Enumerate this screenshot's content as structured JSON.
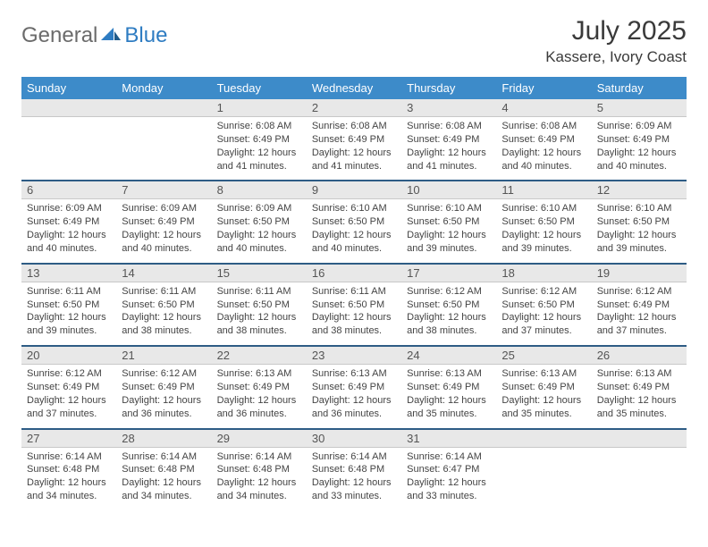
{
  "logo": {
    "text_a": "General",
    "text_b": "Blue"
  },
  "title": {
    "month": "July 2025",
    "location": "Kassere, Ivory Coast"
  },
  "colors": {
    "header_bg": "#3d8bc9",
    "header_text": "#ffffff",
    "date_bg": "#e8e8e8",
    "row_border": "#2e5c85",
    "logo_gray": "#6b6b6b",
    "logo_blue": "#2e7cc2"
  },
  "day_names": [
    "Sunday",
    "Monday",
    "Tuesday",
    "Wednesday",
    "Thursday",
    "Friday",
    "Saturday"
  ],
  "weeks": [
    {
      "dates": [
        "",
        "",
        "1",
        "2",
        "3",
        "4",
        "5"
      ],
      "cells": [
        null,
        null,
        {
          "sunrise": "Sunrise: 6:08 AM",
          "sunset": "Sunset: 6:49 PM",
          "daylight": "Daylight: 12 hours and 41 minutes."
        },
        {
          "sunrise": "Sunrise: 6:08 AM",
          "sunset": "Sunset: 6:49 PM",
          "daylight": "Daylight: 12 hours and 41 minutes."
        },
        {
          "sunrise": "Sunrise: 6:08 AM",
          "sunset": "Sunset: 6:49 PM",
          "daylight": "Daylight: 12 hours and 41 minutes."
        },
        {
          "sunrise": "Sunrise: 6:08 AM",
          "sunset": "Sunset: 6:49 PM",
          "daylight": "Daylight: 12 hours and 40 minutes."
        },
        {
          "sunrise": "Sunrise: 6:09 AM",
          "sunset": "Sunset: 6:49 PM",
          "daylight": "Daylight: 12 hours and 40 minutes."
        }
      ]
    },
    {
      "dates": [
        "6",
        "7",
        "8",
        "9",
        "10",
        "11",
        "12"
      ],
      "cells": [
        {
          "sunrise": "Sunrise: 6:09 AM",
          "sunset": "Sunset: 6:49 PM",
          "daylight": "Daylight: 12 hours and 40 minutes."
        },
        {
          "sunrise": "Sunrise: 6:09 AM",
          "sunset": "Sunset: 6:49 PM",
          "daylight": "Daylight: 12 hours and 40 minutes."
        },
        {
          "sunrise": "Sunrise: 6:09 AM",
          "sunset": "Sunset: 6:50 PM",
          "daylight": "Daylight: 12 hours and 40 minutes."
        },
        {
          "sunrise": "Sunrise: 6:10 AM",
          "sunset": "Sunset: 6:50 PM",
          "daylight": "Daylight: 12 hours and 40 minutes."
        },
        {
          "sunrise": "Sunrise: 6:10 AM",
          "sunset": "Sunset: 6:50 PM",
          "daylight": "Daylight: 12 hours and 39 minutes."
        },
        {
          "sunrise": "Sunrise: 6:10 AM",
          "sunset": "Sunset: 6:50 PM",
          "daylight": "Daylight: 12 hours and 39 minutes."
        },
        {
          "sunrise": "Sunrise: 6:10 AM",
          "sunset": "Sunset: 6:50 PM",
          "daylight": "Daylight: 12 hours and 39 minutes."
        }
      ]
    },
    {
      "dates": [
        "13",
        "14",
        "15",
        "16",
        "17",
        "18",
        "19"
      ],
      "cells": [
        {
          "sunrise": "Sunrise: 6:11 AM",
          "sunset": "Sunset: 6:50 PM",
          "daylight": "Daylight: 12 hours and 39 minutes."
        },
        {
          "sunrise": "Sunrise: 6:11 AM",
          "sunset": "Sunset: 6:50 PM",
          "daylight": "Daylight: 12 hours and 38 minutes."
        },
        {
          "sunrise": "Sunrise: 6:11 AM",
          "sunset": "Sunset: 6:50 PM",
          "daylight": "Daylight: 12 hours and 38 minutes."
        },
        {
          "sunrise": "Sunrise: 6:11 AM",
          "sunset": "Sunset: 6:50 PM",
          "daylight": "Daylight: 12 hours and 38 minutes."
        },
        {
          "sunrise": "Sunrise: 6:12 AM",
          "sunset": "Sunset: 6:50 PM",
          "daylight": "Daylight: 12 hours and 38 minutes."
        },
        {
          "sunrise": "Sunrise: 6:12 AM",
          "sunset": "Sunset: 6:50 PM",
          "daylight": "Daylight: 12 hours and 37 minutes."
        },
        {
          "sunrise": "Sunrise: 6:12 AM",
          "sunset": "Sunset: 6:49 PM",
          "daylight": "Daylight: 12 hours and 37 minutes."
        }
      ]
    },
    {
      "dates": [
        "20",
        "21",
        "22",
        "23",
        "24",
        "25",
        "26"
      ],
      "cells": [
        {
          "sunrise": "Sunrise: 6:12 AM",
          "sunset": "Sunset: 6:49 PM",
          "daylight": "Daylight: 12 hours and 37 minutes."
        },
        {
          "sunrise": "Sunrise: 6:12 AM",
          "sunset": "Sunset: 6:49 PM",
          "daylight": "Daylight: 12 hours and 36 minutes."
        },
        {
          "sunrise": "Sunrise: 6:13 AM",
          "sunset": "Sunset: 6:49 PM",
          "daylight": "Daylight: 12 hours and 36 minutes."
        },
        {
          "sunrise": "Sunrise: 6:13 AM",
          "sunset": "Sunset: 6:49 PM",
          "daylight": "Daylight: 12 hours and 36 minutes."
        },
        {
          "sunrise": "Sunrise: 6:13 AM",
          "sunset": "Sunset: 6:49 PM",
          "daylight": "Daylight: 12 hours and 35 minutes."
        },
        {
          "sunrise": "Sunrise: 6:13 AM",
          "sunset": "Sunset: 6:49 PM",
          "daylight": "Daylight: 12 hours and 35 minutes."
        },
        {
          "sunrise": "Sunrise: 6:13 AM",
          "sunset": "Sunset: 6:49 PM",
          "daylight": "Daylight: 12 hours and 35 minutes."
        }
      ]
    },
    {
      "dates": [
        "27",
        "28",
        "29",
        "30",
        "31",
        "",
        ""
      ],
      "cells": [
        {
          "sunrise": "Sunrise: 6:14 AM",
          "sunset": "Sunset: 6:48 PM",
          "daylight": "Daylight: 12 hours and 34 minutes."
        },
        {
          "sunrise": "Sunrise: 6:14 AM",
          "sunset": "Sunset: 6:48 PM",
          "daylight": "Daylight: 12 hours and 34 minutes."
        },
        {
          "sunrise": "Sunrise: 6:14 AM",
          "sunset": "Sunset: 6:48 PM",
          "daylight": "Daylight: 12 hours and 34 minutes."
        },
        {
          "sunrise": "Sunrise: 6:14 AM",
          "sunset": "Sunset: 6:48 PM",
          "daylight": "Daylight: 12 hours and 33 minutes."
        },
        {
          "sunrise": "Sunrise: 6:14 AM",
          "sunset": "Sunset: 6:47 PM",
          "daylight": "Daylight: 12 hours and 33 minutes."
        },
        null,
        null
      ]
    }
  ]
}
